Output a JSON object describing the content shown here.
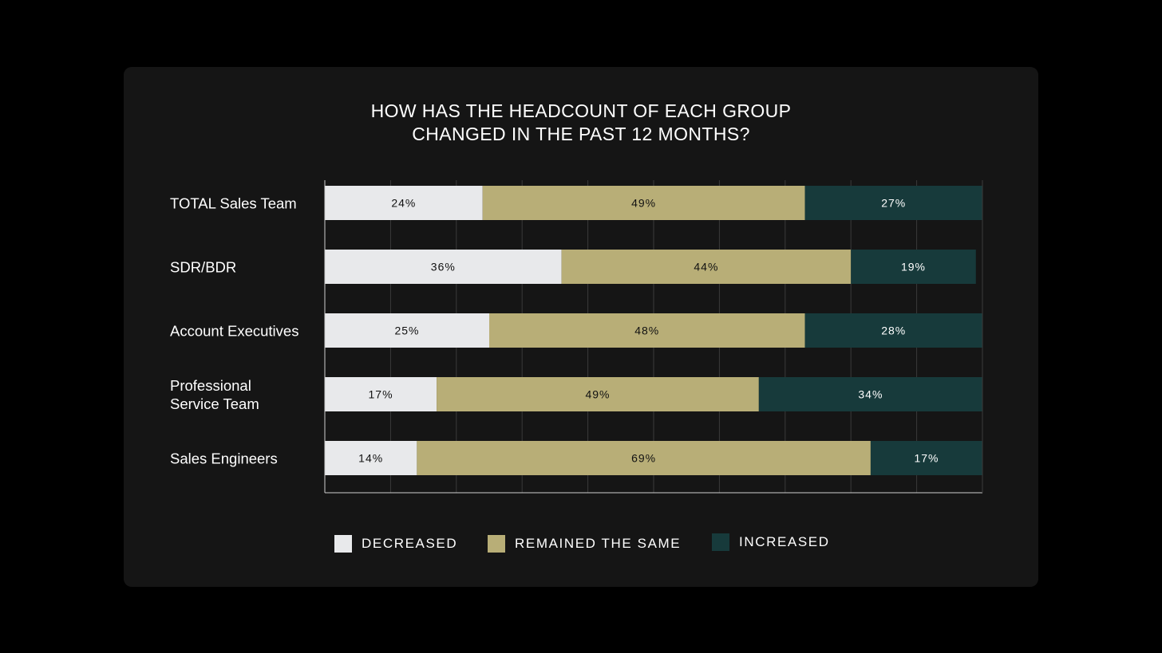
{
  "chart_data": {
    "type": "bar",
    "orientation": "horizontal",
    "stacked": true,
    "title_lines": [
      "HOW HAS THE HEADCOUNT OF EACH GROUP",
      "CHANGED IN THE PAST 12 MONTHS?"
    ],
    "categories": [
      "TOTAL Sales Team",
      "SDR/BDR",
      "Account Executives",
      "Professional Service Team",
      "Sales Engineers"
    ],
    "category_label_lines": [
      [
        "TOTAL Sales Team"
      ],
      [
        "SDR/BDR"
      ],
      [
        "Account Executives"
      ],
      [
        "Professional",
        "Service Team"
      ],
      [
        "Sales Engineers"
      ]
    ],
    "series": [
      {
        "name": "DECREASED",
        "values": [
          24,
          36,
          25,
          17,
          14
        ],
        "labels": [
          "24%",
          "36%",
          "25%",
          "17%",
          "14%"
        ],
        "color": "#e8e9eb",
        "label_color": "#111111"
      },
      {
        "name": "REMAINED THE SAME",
        "values": [
          49,
          44,
          48,
          49,
          69
        ],
        "labels": [
          "49%",
          "44%",
          "48%",
          "49%",
          "69%"
        ],
        "color": "#b8ae77",
        "label_color": "#111111"
      },
      {
        "name": "INCREASED",
        "values": [
          27,
          19,
          28,
          34,
          17
        ],
        "labels": [
          "27%",
          "19%",
          "28%",
          "34%",
          "17%"
        ],
        "color": "#173a3b",
        "label_color": "#ffffff"
      }
    ],
    "xlim": [
      0,
      100
    ],
    "grid": true,
    "legend_position": "bottom"
  },
  "colors": {
    "background": "#000000",
    "card": "#151515",
    "text": "#ffffff",
    "gridline": "#3a3a3a",
    "axis": "#cfcfcf"
  }
}
